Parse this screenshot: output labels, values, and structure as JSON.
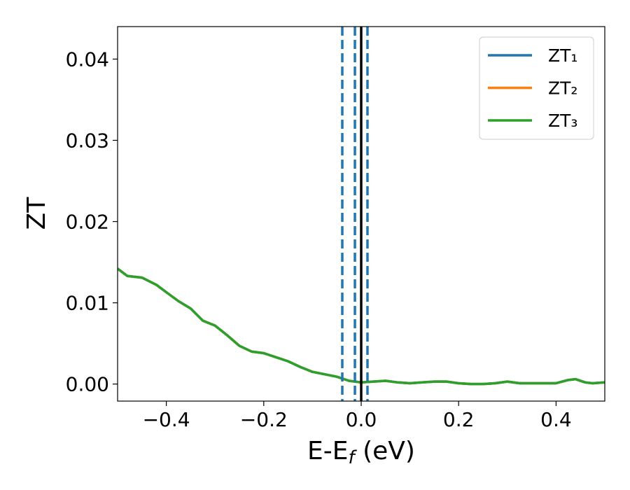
{
  "chart_data": {
    "type": "line",
    "x_label": "E-Ef (eV)",
    "y_label": "ZT",
    "x": [
      -0.5,
      -0.48,
      -0.45,
      -0.42,
      -0.4,
      -0.375,
      -0.35,
      -0.325,
      -0.3,
      -0.275,
      -0.25,
      -0.225,
      -0.2,
      -0.175,
      -0.15,
      -0.125,
      -0.1,
      -0.075,
      -0.05,
      -0.025,
      0,
      0.025,
      0.05,
      0.075,
      0.1,
      0.125,
      0.15,
      0.175,
      0.2,
      0.225,
      0.25,
      0.275,
      0.3,
      0.325,
      0.35,
      0.375,
      0.4,
      0.425,
      0.44,
      0.46,
      0.475,
      0.5
    ],
    "series": [
      {
        "name": "ZT₁",
        "color": "#1f77b4",
        "values": [
          0.0142,
          0.0133,
          0.0131,
          0.0122,
          0.0113,
          0.0102,
          0.0093,
          0.0078,
          0.0072,
          0.006,
          0.0047,
          0.004,
          0.0038,
          0.0033,
          0.0028,
          0.0021,
          0.0015,
          0.0012,
          0.0009,
          0.0004,
          0.0002,
          0.0003,
          0.0004,
          0.0002,
          0.0001,
          0.0002,
          0.0003,
          0.0003,
          0.0001,
          0,
          0,
          0.0001,
          0.0003,
          0.0001,
          0.0001,
          0.0001,
          0.0001,
          0.0005,
          0.0006,
          0.0002,
          0.0001,
          0.0002
        ]
      },
      {
        "name": "ZT₂",
        "color": "#ff7f0e",
        "values": [
          0.0142,
          0.0133,
          0.0131,
          0.0122,
          0.0113,
          0.0102,
          0.0093,
          0.0078,
          0.0072,
          0.006,
          0.0047,
          0.004,
          0.0038,
          0.0033,
          0.0028,
          0.0021,
          0.0015,
          0.0012,
          0.0009,
          0.0004,
          0.0002,
          0.0003,
          0.0004,
          0.0002,
          0.0001,
          0.0002,
          0.0003,
          0.0003,
          0.0001,
          0,
          0,
          0.0001,
          0.0003,
          0.0001,
          0.0001,
          0.0001,
          0.0001,
          0.0005,
          0.0006,
          0.0002,
          0.0001,
          0.0002
        ]
      },
      {
        "name": "ZT₃",
        "color": "#2ca02c",
        "values": [
          0.0142,
          0.0133,
          0.0131,
          0.0122,
          0.0113,
          0.0102,
          0.0093,
          0.0078,
          0.0072,
          0.006,
          0.0047,
          0.004,
          0.0038,
          0.0033,
          0.0028,
          0.0021,
          0.0015,
          0.0012,
          0.0009,
          0.0004,
          0.0002,
          0.0003,
          0.0004,
          0.0002,
          0.0001,
          0.0002,
          0.0003,
          0.0003,
          0.0001,
          0,
          0,
          0.0001,
          0.0003,
          0.0001,
          0.0001,
          0.0001,
          0.0001,
          0.0005,
          0.0006,
          0.0002,
          0.0001,
          0.0002
        ]
      }
    ],
    "vlines": [
      {
        "x": -0.0388,
        "color": "#1f77b4",
        "style": "dashed"
      },
      {
        "x": -0.0129,
        "color": "#1f77b4",
        "style": "dashed"
      },
      {
        "x": 0.0129,
        "color": "#1f77b4",
        "style": "dashed"
      },
      {
        "x": 0,
        "color": "#000000",
        "style": "solid"
      }
    ],
    "xlim": [
      -0.5,
      0.5
    ],
    "xticks": [
      {
        "value": -0.4,
        "label": "−0.4"
      },
      {
        "value": -0.2,
        "label": "−0.2"
      },
      {
        "value": 0,
        "label": "0.0"
      },
      0.2,
      0.4
    ],
    "ylim": [
      -0.0021,
      0.044
    ],
    "yticks": [
      {
        "value": 0,
        "label": "0.00"
      },
      0.01,
      0.02,
      0.03,
      0.04
    ],
    "grid": false,
    "legend": "upper right"
  }
}
